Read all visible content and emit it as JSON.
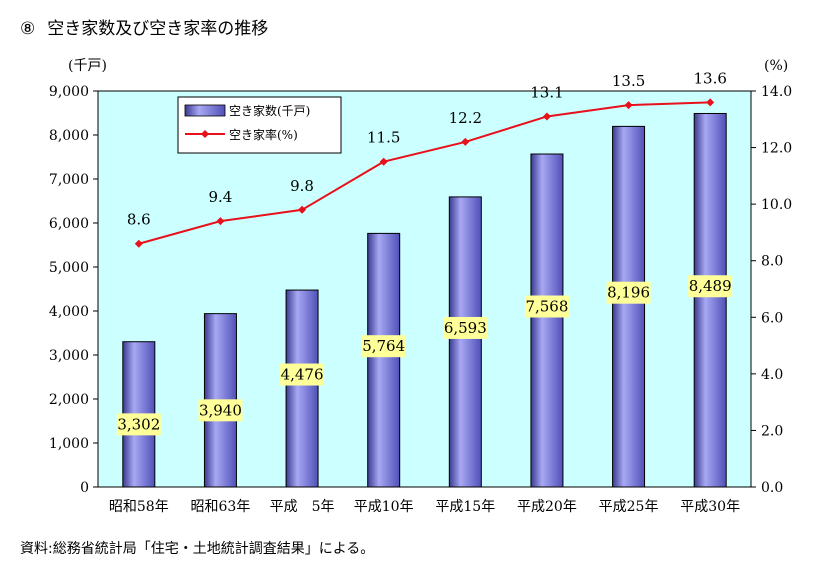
{
  "header": {
    "number": "⑧",
    "title": "空き家数及び空き家率の推移"
  },
  "footer": {
    "source": "資料:総務省統計局「住宅・土地統計調査結果」による。"
  },
  "chart_data": {
    "type": "bar",
    "categories": [
      "昭和58年",
      "昭和63年",
      "平成　5年",
      "平成10年",
      "平成15年",
      "平成20年",
      "平成25年",
      "平成30年"
    ],
    "y_unit_left": "(千戸)",
    "y_unit_right": "(%)",
    "ylim": [
      0,
      9000
    ],
    "y2lim": [
      0,
      14
    ],
    "yticks": [
      "0",
      "1,000",
      "2,000",
      "3,000",
      "4,000",
      "5,000",
      "6,000",
      "7,000",
      "8,000",
      "9,000"
    ],
    "y2ticks": [
      "0.0",
      "2.0",
      "4.0",
      "6.0",
      "8.0",
      "10.0",
      "12.0",
      "14.0"
    ],
    "grid": false,
    "legend_position": "top-left",
    "series": [
      {
        "name": "空き家数(千戸)",
        "type": "bar",
        "axis": "left",
        "values": [
          3302,
          3940,
          4476,
          5764,
          6593,
          7568,
          8196,
          8489
        ],
        "labels": [
          "3,302",
          "3,940",
          "4,476",
          "5,764",
          "6,593",
          "7,568",
          "8,196",
          "8,489"
        ]
      },
      {
        "name": "空き家率(%)",
        "type": "line",
        "axis": "right",
        "values": [
          8.6,
          9.4,
          9.8,
          11.5,
          12.2,
          13.1,
          13.5,
          13.6
        ],
        "labels": [
          "8.6",
          "9.4",
          "9.8",
          "11.5",
          "12.2",
          "13.1",
          "13.5",
          "13.6"
        ]
      }
    ],
    "colors": {
      "plot_bg": "#ccffff",
      "bar_fill": "#8080e0",
      "bar_dark": "#404098",
      "line": "#e8101a",
      "label_bg": "#ffff99"
    }
  }
}
